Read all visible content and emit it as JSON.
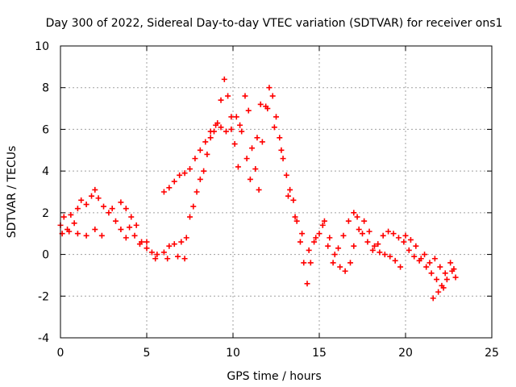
{
  "chart_data": {
    "type": "scatter",
    "title": "Day 300 of 2022, Sidereal Day-to-day VTEC variation (SDTVAR) for receiver ons1",
    "xlabel": "GPS time / hours",
    "ylabel": "SDTVAR / TECUs",
    "xlim": [
      0,
      25
    ],
    "ylim": [
      -4,
      10
    ],
    "xticks": [
      "0",
      "5",
      "10",
      "15",
      "20",
      "25"
    ],
    "yticks": [
      "-4",
      "-2",
      "0",
      "2",
      "4",
      "6",
      "8",
      "10"
    ],
    "grid": true,
    "marker": "+",
    "color": "#ff0000",
    "series": [
      {
        "name": "ons1",
        "points": [
          [
            0.0,
            1.4
          ],
          [
            0.2,
            1.8
          ],
          [
            0.4,
            1.2
          ],
          [
            0.6,
            1.9
          ],
          [
            0.8,
            1.5
          ],
          [
            1.0,
            2.2
          ],
          [
            1.2,
            2.6
          ],
          [
            1.5,
            2.4
          ],
          [
            1.8,
            2.8
          ],
          [
            2.0,
            3.1
          ],
          [
            2.2,
            2.7
          ],
          [
            2.5,
            2.3
          ],
          [
            2.8,
            2.0
          ],
          [
            3.0,
            2.2
          ],
          [
            3.2,
            1.6
          ],
          [
            3.5,
            1.2
          ],
          [
            3.8,
            0.8
          ],
          [
            4.0,
            1.3
          ],
          [
            4.3,
            0.9
          ],
          [
            4.6,
            0.5
          ],
          [
            5.0,
            0.3
          ],
          [
            5.3,
            0.1
          ],
          [
            5.6,
            0.0
          ],
          [
            6.0,
            0.1
          ],
          [
            6.3,
            0.4
          ],
          [
            6.6,
            0.5
          ],
          [
            7.0,
            0.6
          ],
          [
            7.3,
            0.8
          ],
          [
            7.5,
            1.8
          ],
          [
            7.7,
            2.3
          ],
          [
            7.9,
            3.0
          ],
          [
            8.1,
            3.6
          ],
          [
            8.3,
            4.0
          ],
          [
            8.5,
            4.8
          ],
          [
            8.7,
            5.6
          ],
          [
            8.9,
            5.9
          ],
          [
            9.1,
            6.3
          ],
          [
            9.3,
            7.4
          ],
          [
            9.5,
            8.4
          ],
          [
            9.7,
            7.6
          ],
          [
            9.9,
            6.6
          ],
          [
            10.1,
            5.3
          ],
          [
            10.3,
            4.2
          ],
          [
            10.5,
            5.9
          ],
          [
            10.7,
            7.6
          ],
          [
            10.9,
            6.9
          ],
          [
            11.1,
            5.1
          ],
          [
            11.3,
            4.1
          ],
          [
            11.5,
            3.1
          ],
          [
            11.7,
            5.4
          ],
          [
            11.9,
            7.1
          ],
          [
            12.1,
            8.0
          ],
          [
            12.3,
            7.6
          ],
          [
            12.5,
            6.6
          ],
          [
            12.7,
            5.6
          ],
          [
            12.9,
            4.6
          ],
          [
            13.1,
            3.8
          ],
          [
            13.3,
            3.1
          ],
          [
            13.5,
            2.6
          ],
          [
            13.7,
            1.6
          ],
          [
            13.9,
            0.6
          ],
          [
            14.1,
            -0.4
          ],
          [
            14.3,
            -1.4
          ],
          [
            14.5,
            -0.4
          ],
          [
            14.7,
            0.6
          ],
          [
            15.0,
            1.0
          ],
          [
            15.3,
            1.6
          ],
          [
            15.6,
            0.8
          ],
          [
            15.9,
            0.0
          ],
          [
            16.2,
            -0.6
          ],
          [
            16.5,
            -0.8
          ],
          [
            16.8,
            -0.4
          ],
          [
            17.0,
            0.4
          ],
          [
            17.3,
            1.2
          ],
          [
            17.6,
            1.6
          ],
          [
            17.9,
            1.1
          ],
          [
            18.2,
            0.4
          ],
          [
            18.5,
            0.1
          ],
          [
            18.8,
            0.0
          ],
          [
            19.1,
            -0.1
          ],
          [
            19.4,
            -0.3
          ],
          [
            19.7,
            -0.6
          ],
          [
            20.0,
            0.9
          ],
          [
            20.3,
            0.7
          ],
          [
            20.6,
            0.4
          ],
          [
            20.9,
            -0.2
          ],
          [
            21.2,
            -0.6
          ],
          [
            21.5,
            -0.9
          ],
          [
            21.8,
            -1.2
          ],
          [
            22.1,
            -1.5
          ],
          [
            22.4,
            -1.2
          ],
          [
            22.7,
            -0.8
          ],
          [
            22.9,
            -1.1
          ],
          [
            0.1,
            1.0
          ],
          [
            0.5,
            1.1
          ],
          [
            1.0,
            1.0
          ],
          [
            1.5,
            0.9
          ],
          [
            2.0,
            1.2
          ],
          [
            2.4,
            0.9
          ],
          [
            3.5,
            2.5
          ],
          [
            3.8,
            2.2
          ],
          [
            4.1,
            1.8
          ],
          [
            4.4,
            1.4
          ],
          [
            4.7,
            0.6
          ],
          [
            5.0,
            0.6
          ],
          [
            5.5,
            -0.2
          ],
          [
            6.2,
            -0.2
          ],
          [
            6.8,
            -0.1
          ],
          [
            7.2,
            -0.2
          ],
          [
            6.0,
            3.0
          ],
          [
            6.3,
            3.2
          ],
          [
            6.6,
            3.5
          ],
          [
            6.9,
            3.8
          ],
          [
            7.2,
            3.9
          ],
          [
            7.5,
            4.1
          ],
          [
            7.8,
            4.6
          ],
          [
            8.1,
            5.0
          ],
          [
            8.4,
            5.4
          ],
          [
            8.7,
            5.9
          ],
          [
            9.0,
            6.2
          ],
          [
            9.3,
            6.1
          ],
          [
            9.6,
            5.9
          ],
          [
            9.9,
            6.0
          ],
          [
            10.2,
            6.6
          ],
          [
            10.4,
            6.2
          ],
          [
            10.8,
            4.6
          ],
          [
            11.0,
            3.6
          ],
          [
            11.4,
            5.6
          ],
          [
            11.6,
            7.2
          ],
          [
            12.0,
            7.0
          ],
          [
            12.4,
            6.1
          ],
          [
            12.8,
            5.0
          ],
          [
            13.2,
            2.8
          ],
          [
            13.6,
            1.8
          ],
          [
            14.0,
            1.0
          ],
          [
            14.4,
            0.2
          ],
          [
            14.8,
            0.8
          ],
          [
            15.2,
            1.4
          ],
          [
            15.5,
            0.4
          ],
          [
            15.8,
            -0.4
          ],
          [
            16.1,
            0.3
          ],
          [
            16.4,
            0.9
          ],
          [
            16.7,
            1.6
          ],
          [
            17.0,
            2.0
          ],
          [
            17.2,
            1.8
          ],
          [
            17.5,
            1.0
          ],
          [
            17.8,
            0.6
          ],
          [
            18.1,
            0.2
          ],
          [
            18.4,
            0.5
          ],
          [
            18.7,
            0.9
          ],
          [
            19.0,
            1.1
          ],
          [
            19.3,
            1.0
          ],
          [
            19.6,
            0.8
          ],
          [
            19.9,
            0.6
          ],
          [
            20.2,
            0.2
          ],
          [
            20.5,
            -0.1
          ],
          [
            20.8,
            -0.3
          ],
          [
            21.1,
            0.0
          ],
          [
            21.4,
            -0.4
          ],
          [
            21.7,
            -0.2
          ],
          [
            22.0,
            -0.6
          ],
          [
            22.3,
            -0.9
          ],
          [
            22.6,
            -0.4
          ],
          [
            22.8,
            -0.7
          ],
          [
            21.6,
            -2.1
          ],
          [
            21.9,
            -1.8
          ],
          [
            22.2,
            -1.6
          ]
        ]
      }
    ]
  }
}
